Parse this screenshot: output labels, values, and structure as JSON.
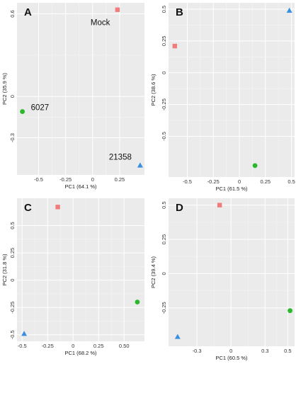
{
  "chart_data": [
    {
      "type": "scatter",
      "panel_label": "A",
      "xlabel": "PC1 (64.1 %)",
      "ylabel": "PC2 (35.9 %)",
      "xlim": [
        -0.7,
        0.48
      ],
      "ylim": [
        -0.57,
        0.68
      ],
      "xticks": [
        -0.5,
        -0.25,
        0,
        0.25
      ],
      "xtick_labels": [
        "-0.5",
        "-0.25",
        "0",
        "0.25"
      ],
      "yticks": [
        0.6,
        0,
        -0.3
      ],
      "ytick_labels": [
        "0.6",
        "0",
        "-0.3"
      ],
      "grid": true,
      "points": [
        {
          "x": 0.23,
          "y": 0.63,
          "shape": "square",
          "color": "#f07c7c",
          "label": "Mock"
        },
        {
          "x": -0.65,
          "y": -0.11,
          "shape": "circle",
          "color": "#2cb82c",
          "label": "6027"
        },
        {
          "x": 0.44,
          "y": -0.5,
          "shape": "triangle",
          "color": "#3b8fe0",
          "label": "21358"
        }
      ]
    },
    {
      "type": "scatter",
      "panel_label": "B",
      "xlabel": "PC1 (61.5 %)",
      "ylabel": "PC2 (38.6 %)",
      "xlim": [
        -0.68,
        0.53
      ],
      "ylim": [
        -0.82,
        0.55
      ],
      "xticks": [
        -0.5,
        -0.25,
        0,
        0.25,
        0.5
      ],
      "xtick_labels": [
        "-0.5",
        "-0.25",
        "0",
        "0.25",
        "0.5"
      ],
      "yticks": [
        0.5,
        0.25,
        0,
        -0.25,
        -0.5
      ],
      "ytick_labels": [
        "0.5",
        "0.25",
        "0",
        "-0.25",
        "-0.5"
      ],
      "grid": true,
      "points": [
        {
          "x": -0.62,
          "y": 0.21,
          "shape": "square",
          "color": "#f07c7c"
        },
        {
          "x": 0.48,
          "y": 0.49,
          "shape": "triangle",
          "color": "#3b8fe0"
        },
        {
          "x": 0.15,
          "y": -0.73,
          "shape": "circle",
          "color": "#2cb82c"
        }
      ]
    },
    {
      "type": "scatter",
      "panel_label": "C",
      "xlabel": "PC1 (68.2 %)",
      "ylabel": "PC2 (31.8 %)",
      "xlim": [
        -0.55,
        0.7
      ],
      "ylim": [
        -0.56,
        0.75
      ],
      "xticks": [
        -0.5,
        -0.25,
        0,
        0.25,
        0.5
      ],
      "xtick_labels": [
        "-0.5",
        "-0.25",
        "0",
        "0.25",
        "0.50"
      ],
      "yticks": [
        0.5,
        0.25,
        0,
        -0.25,
        -0.5
      ],
      "ytick_labels": [
        "0.5",
        "0.25",
        "0",
        "-0.25",
        "-0.5"
      ],
      "grid": true,
      "points": [
        {
          "x": -0.15,
          "y": 0.67,
          "shape": "square",
          "color": "#f07c7c"
        },
        {
          "x": 0.63,
          "y": -0.2,
          "shape": "circle",
          "color": "#2cb82c"
        },
        {
          "x": -0.48,
          "y": -0.49,
          "shape": "triangle",
          "color": "#3b8fe0"
        }
      ]
    },
    {
      "type": "scatter",
      "panel_label": "D",
      "xlabel": "PC1 (60.5 %)",
      "ylabel": "PC2 (39.4 %)",
      "xlim": [
        -0.55,
        0.56
      ],
      "ylim": [
        -0.53,
        0.55
      ],
      "xticks": [
        -0.3,
        0,
        0.3,
        0.5
      ],
      "xtick_labels": [
        "-0.3",
        "0",
        "0.3",
        "0.5"
      ],
      "yticks": [
        0.5,
        0.25,
        0,
        -0.25
      ],
      "ytick_labels": [
        "0.5",
        "0.25",
        "0",
        "-0.25"
      ],
      "grid": true,
      "points": [
        {
          "x": -0.1,
          "y": 0.5,
          "shape": "square",
          "color": "#f07c7c"
        },
        {
          "x": 0.52,
          "y": -0.27,
          "shape": "circle",
          "color": "#2cb82c"
        },
        {
          "x": -0.47,
          "y": -0.46,
          "shape": "triangle",
          "color": "#3b8fe0"
        }
      ]
    }
  ]
}
